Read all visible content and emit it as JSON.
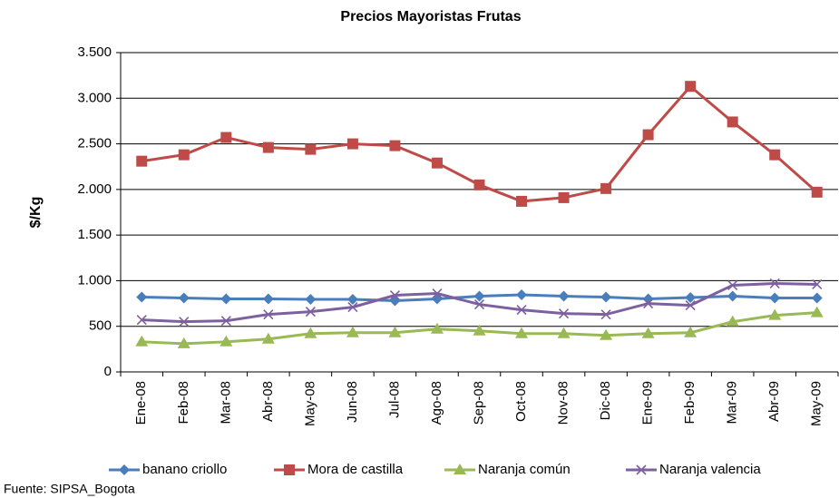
{
  "chart_data": {
    "type": "line",
    "title": "Precios Mayoristas  Frutas",
    "y_label": "$/Kg",
    "source": "Fuente: SIPSA_Bogota",
    "categories": [
      "Ene-08",
      "Feb-08",
      "Mar-08",
      "Abr-08",
      "May-08",
      "Jun-08",
      "Jul-08",
      "Ago-08",
      "Sep-08",
      "Oct-08",
      "Nov-08",
      "Dic-08",
      "Ene-09",
      "Feb-09",
      "Mar-09",
      "Abr-09",
      "May-09"
    ],
    "series": [
      {
        "name": "banano criollo",
        "color": "#4a7ebb",
        "marker": "diamond",
        "values": [
          820,
          810,
          800,
          800,
          795,
          795,
          780,
          800,
          830,
          845,
          830,
          820,
          800,
          815,
          830,
          810,
          810
        ]
      },
      {
        "name": "Mora de castilla",
        "color": "#be4b48",
        "marker": "square",
        "values": [
          2310,
          2380,
          2570,
          2460,
          2440,
          2500,
          2480,
          2290,
          2050,
          1870,
          1910,
          2010,
          2600,
          3130,
          2740,
          2380,
          1970
        ]
      },
      {
        "name": "Naranja común",
        "color": "#98b954",
        "marker": "triangle",
        "values": [
          330,
          310,
          330,
          360,
          420,
          430,
          430,
          470,
          450,
          420,
          420,
          400,
          420,
          430,
          550,
          620,
          650
        ]
      },
      {
        "name": "Naranja valencia",
        "color": "#7d60a0",
        "marker": "x",
        "values": [
          570,
          550,
          560,
          630,
          660,
          710,
          840,
          860,
          740,
          680,
          640,
          630,
          750,
          730,
          950,
          970,
          960
        ]
      }
    ],
    "ylim": [
      0,
      3500
    ],
    "yticks": [
      0,
      500,
      {
        "value": 1000,
        "label": "1.000"
      },
      {
        "value": 1500,
        "label": "1.500"
      },
      {
        "value": 2000,
        "label": "2.000"
      },
      {
        "value": 2500,
        "label": "2.500"
      },
      {
        "value": 3000,
        "label": "3.000"
      },
      {
        "value": 3500,
        "label": "3.500"
      }
    ],
    "grid": true,
    "legend": "bottom"
  }
}
